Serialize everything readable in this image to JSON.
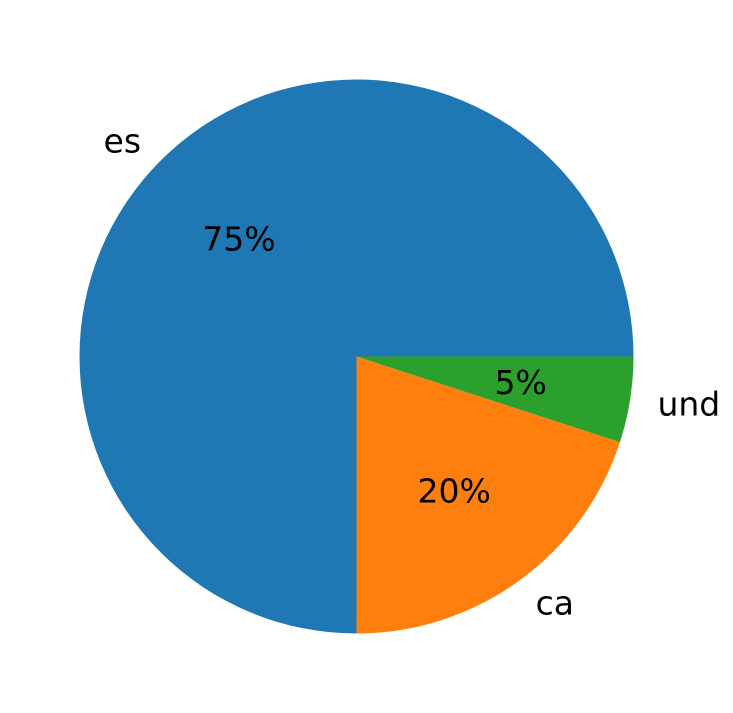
{
  "chart_data": {
    "type": "pie",
    "slices": [
      {
        "label": "es",
        "value": 75,
        "pct_label": "75%",
        "color": "#1f77b4"
      },
      {
        "label": "ca",
        "value": 20,
        "pct_label": "20%",
        "color": "#ff7f0e"
      },
      {
        "label": "und",
        "value": 5,
        "pct_label": "5%",
        "color": "#2ca02c"
      }
    ],
    "start_angle_deg": 0,
    "direction": "counterclockwise",
    "legend": "none"
  }
}
